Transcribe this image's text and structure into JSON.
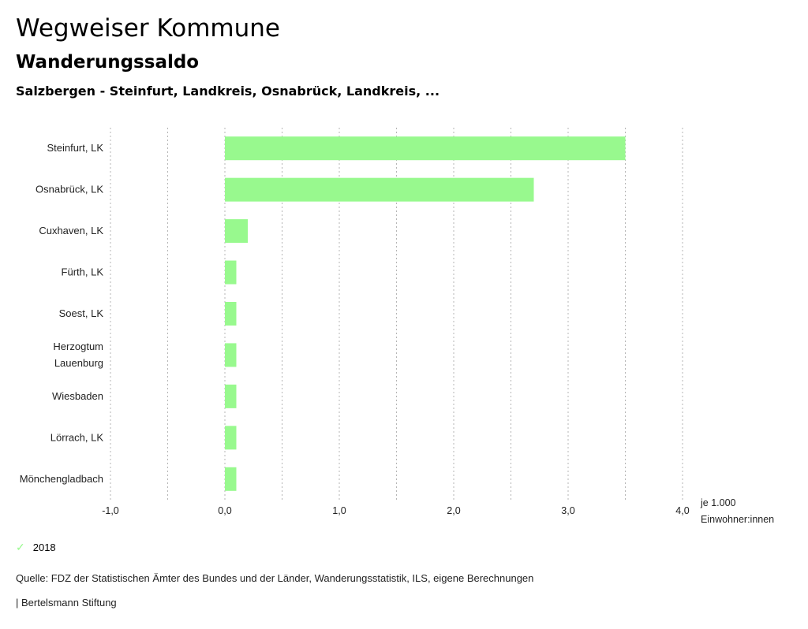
{
  "header": {
    "title": "Wegweiser Kommune",
    "subtitle": "Wanderungssaldo",
    "selection": "Salzbergen - Steinfurt, Landkreis, Osnabrück, Landkreis, ..."
  },
  "chart_data": {
    "type": "bar",
    "orientation": "horizontal",
    "categories": [
      [
        "Steinfurt, LK"
      ],
      [
        "Osnabrück, LK"
      ],
      [
        "Cuxhaven, LK"
      ],
      [
        "Fürth, LK"
      ],
      [
        "Soest, LK"
      ],
      [
        "Herzogtum",
        "Lauenburg"
      ],
      [
        "Wiesbaden"
      ],
      [
        "Lörrach, LK"
      ],
      [
        "Mönchengladbach"
      ]
    ],
    "series": [
      {
        "name": "2018",
        "color": "#98f98e",
        "values": [
          3.5,
          2.7,
          0.2,
          0.1,
          0.1,
          0.1,
          0.1,
          0.1,
          0.1
        ]
      }
    ],
    "xlim": [
      -1.0,
      4.0
    ],
    "xticks": [
      -1.0,
      -0.5,
      0.0,
      0.5,
      1.0,
      1.5,
      2.0,
      2.5,
      3.0,
      3.5,
      4.0
    ],
    "xtick_labels": [
      {
        "value": -1.0,
        "label": "-1,0"
      },
      {
        "value": 0.0,
        "label": "0,0"
      },
      {
        "value": 1.0,
        "label": "1,0"
      },
      {
        "value": 2.0,
        "label": "2,0"
      },
      {
        "value": 3.0,
        "label": "3,0"
      },
      {
        "value": 4.0,
        "label": "4,0"
      }
    ],
    "xlabel": "je 1.000 Einwohner:innen",
    "xlabel_lines": [
      "je 1.000",
      "Einwohner:innen"
    ],
    "grid": "vertical dotted",
    "legend_position": "bottom-left"
  },
  "legend": {
    "icon": "check-icon",
    "label": "2018"
  },
  "footer": {
    "source": "Quelle: FDZ der Statistischen Ämter des Bundes und der Länder, Wanderungsstatistik, ILS, eigene Berechnungen",
    "credit": "| Bertelsmann Stiftung"
  }
}
